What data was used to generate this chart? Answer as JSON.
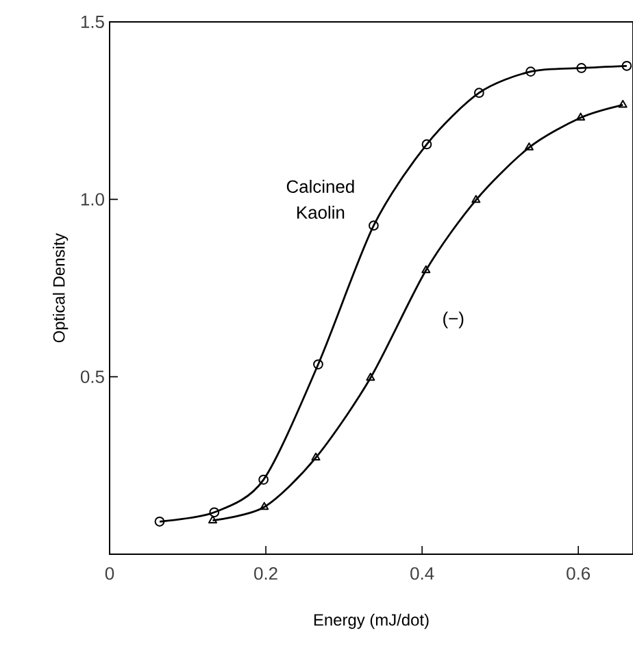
{
  "chart_data": {
    "type": "line",
    "xlabel": "Energy (mJ/dot)",
    "ylabel": "Optical Density",
    "xlim": [
      0,
      0.67
    ],
    "ylim": [
      0,
      1.5
    ],
    "xticks": [
      0,
      0.2,
      0.4,
      0.6
    ],
    "yticks": [
      {
        "value": 0.5,
        "label": "0.5"
      },
      {
        "value": 1.0,
        "label": "1.0"
      },
      {
        "value": 1.5,
        "label": "1.5"
      }
    ],
    "grid": false,
    "legend": false,
    "series": [
      {
        "name": "Calcined Kaolin",
        "color": "#000000",
        "marker": "circle",
        "x": [
          0.064,
          0.134,
          0.197,
          0.267,
          0.338,
          0.406,
          0.473,
          0.539,
          0.604,
          0.662
        ],
        "values": [
          0.092,
          0.118,
          0.21,
          0.535,
          0.926,
          1.155,
          1.3,
          1.36,
          1.37,
          1.376
        ]
      },
      {
        "name": "(−)",
        "color": "#000000",
        "marker": "triangle",
        "x": [
          0.132,
          0.198,
          0.264,
          0.334,
          0.405,
          0.469,
          0.537,
          0.603,
          0.657
        ],
        "values": [
          0.095,
          0.133,
          0.272,
          0.497,
          0.8,
          0.998,
          1.146,
          1.23,
          1.266
        ]
      }
    ]
  }
}
